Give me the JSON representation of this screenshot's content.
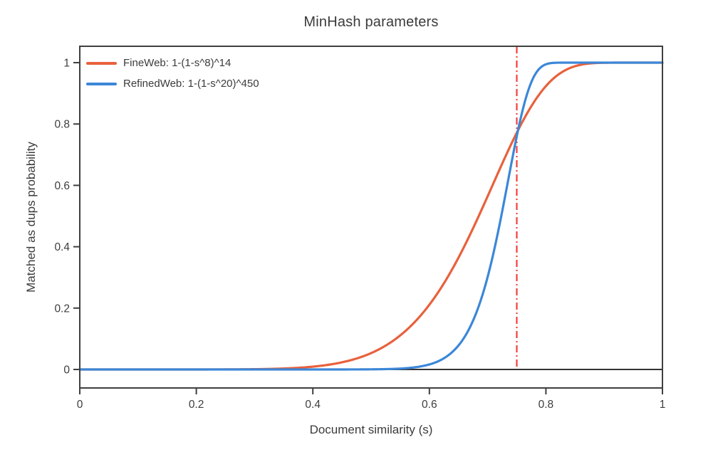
{
  "page": {
    "background": "#ffffff"
  },
  "chart_data": {
    "type": "line",
    "title": "MinHash parameters",
    "xlabel": "Document similarity (s)",
    "ylabel": "Matched as dups probability",
    "xlim": [
      0,
      1
    ],
    "ylim": [
      0,
      1
    ],
    "grid": false,
    "legend_position": "top-left",
    "x_ticks": [
      0,
      0.2,
      0.4,
      0.6,
      0.8,
      1
    ],
    "x_tick_labels": [
      "0",
      "0.2",
      "0.4",
      "0.6",
      "0.8",
      "1"
    ],
    "y_ticks": [
      0,
      0.2,
      0.4,
      0.6,
      0.8,
      1
    ],
    "y_tick_labels": [
      "0",
      "0.2",
      "0.4",
      "0.6",
      "0.8",
      "1"
    ],
    "sample_x": [
      0,
      0.05,
      0.1,
      0.15,
      0.2,
      0.25,
      0.3,
      0.35,
      0.4,
      0.45,
      0.5,
      0.55,
      0.6,
      0.65,
      0.7,
      0.75,
      0.8,
      0.85,
      0.9,
      0.95,
      1
    ],
    "series": [
      {
        "key": "fineweb",
        "name": "FineWeb: 1-(1-s^8)^14",
        "color": "#e8613c",
        "formula": "1-(1-s^8)^14",
        "s_exponent": 8,
        "outer_exponent": 14,
        "sample_y": [
          0,
          0,
          1e-07,
          4e-06,
          4e-05,
          0.0002,
          0.0009,
          0.0031,
          0.0091,
          0.0233,
          0.0533,
          0.1111,
          0.2111,
          0.3645,
          0.5645,
          0.7715,
          0.9236,
          0.9883,
          0.9996,
          1,
          1
        ]
      },
      {
        "key": "refinedweb",
        "name": "RefinedWeb: 1-(1-s^20)^450",
        "color": "#3b87d8",
        "formula": "1-(1-s^20)^450",
        "s_exponent": 20,
        "outer_exponent": 450,
        "sample_y": [
          0,
          0,
          0,
          0,
          0,
          0,
          0,
          3e-07,
          4.9e-06,
          5.22e-05,
          0.0004,
          0.0029,
          0.0163,
          0.0783,
          0.3018,
          0.7605,
          0.9946,
          1,
          1,
          1,
          1
        ]
      }
    ],
    "vline": {
      "x": 0.75,
      "color": "#f0413e",
      "style": "dash-dot"
    },
    "zero_line": {
      "y": 0,
      "color": "#333333"
    },
    "colors": {
      "frame": "#3f3f3f",
      "text": "#3b3b3b",
      "tick_text": "#3d3d3d"
    }
  }
}
